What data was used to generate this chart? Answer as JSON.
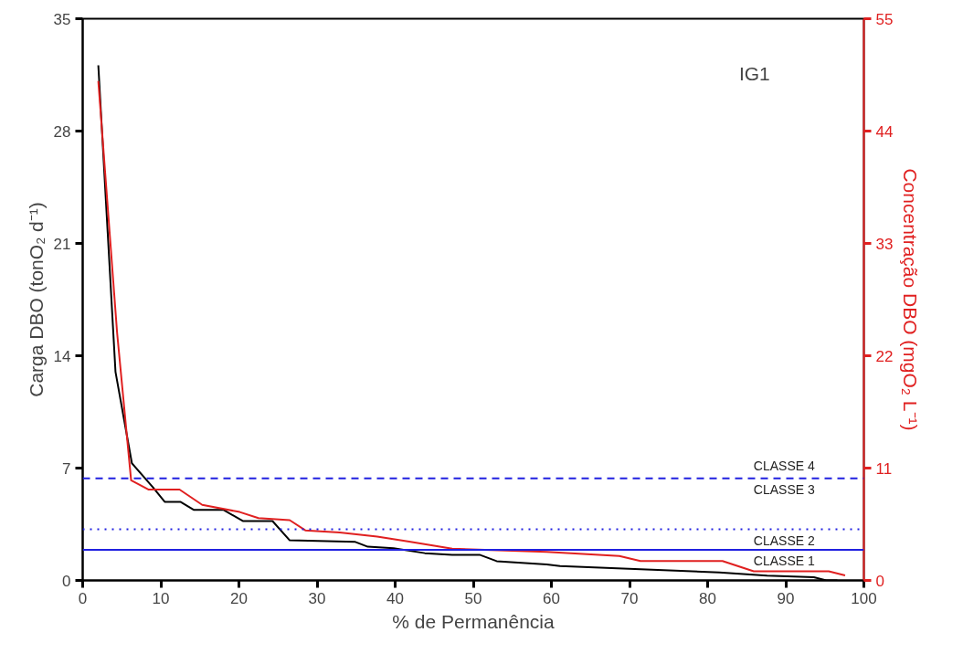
{
  "chart_data": {
    "type": "line",
    "title": "IG1",
    "xlabel": "% de Permanência",
    "ylabel": "Carga DBO (tonO₂ d⁻¹)",
    "y2label": "Concentração DBO (mgO₂ L⁻¹)",
    "xlim": [
      0,
      100
    ],
    "xticks": [
      0,
      10,
      20,
      30,
      40,
      50,
      60,
      70,
      80,
      90,
      100
    ],
    "ylim": [
      0,
      35
    ],
    "yticks": [
      0,
      7,
      14,
      21,
      28,
      35
    ],
    "y2lim": [
      0,
      55
    ],
    "y2ticks": [
      0,
      11,
      22,
      33,
      44,
      55
    ],
    "grid": false,
    "line_style": "solid",
    "marker": "none",
    "series": [
      {
        "color": "#000000",
        "x": [
          2,
          4.2,
          6.3,
          9,
          10.5,
          12.5,
          14.2,
          18,
          20.5,
          24.3,
          26.5,
          34.9,
          36.5,
          39.8,
          43.8,
          47.3,
          50.8,
          53,
          59.4,
          61.1,
          71.4,
          81.5,
          87.6,
          93.6,
          95.2,
          96.6
        ],
        "values": [
          32.1,
          13.0,
          7.3,
          5.8,
          4.9,
          4.9,
          4.4,
          4.4,
          3.7,
          3.7,
          2.5,
          2.4,
          2.1,
          2.0,
          1.7,
          1.6,
          1.6,
          1.2,
          1.0,
          0.9,
          0.7,
          0.5,
          0.3,
          0.2,
          0,
          0
        ]
      },
      {
        "color": "#e02020",
        "axis": "y2",
        "x": [
          2,
          4.4,
          5.7,
          6.2,
          8.4,
          12.4,
          15.3,
          20.1,
          22.5,
          26.5,
          28.5,
          32.9,
          37.7,
          41.8,
          45,
          47.3,
          59.4,
          68.7,
          71.4,
          81.9,
          85.9,
          95.5,
          97.6
        ],
        "values": [
          48.9,
          24.3,
          13.8,
          9.8,
          8.9,
          8.9,
          7.4,
          6.7,
          6.1,
          5.9,
          4.9,
          4.7,
          4.3,
          3.8,
          3.4,
          3.1,
          2.8,
          2.4,
          1.9,
          1.9,
          0.9,
          0.9,
          0.5
        ]
      }
    ],
    "ref_lines": [
      {
        "axis": "y2",
        "value": 10,
        "label": "CLASSE 3",
        "color": "#2020e0",
        "line_style": "dashed"
      },
      {
        "axis": "y2",
        "value": 5,
        "label": "CLASSE 2",
        "color": "#2020e0",
        "line_style": "dotted"
      },
      {
        "axis": "y2",
        "value": 3,
        "label": "CLASSE 1",
        "color": "#2020e0",
        "line_style": "solid"
      }
    ],
    "annotations": [
      "CLASSE 4"
    ]
  }
}
